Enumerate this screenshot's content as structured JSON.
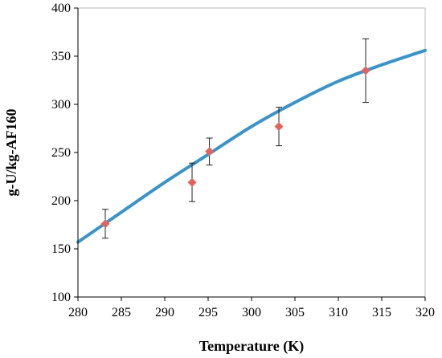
{
  "chart_data": {
    "type": "scatter",
    "title": "",
    "xlabel": "Temperature (K)",
    "ylabel": "g-U/kg-AF160",
    "xlim": [
      280,
      320
    ],
    "ylim": [
      100,
      400
    ],
    "x_ticks": [
      280,
      285,
      290,
      295,
      300,
      305,
      310,
      315,
      320
    ],
    "y_ticks": [
      100,
      150,
      200,
      250,
      300,
      350,
      400
    ],
    "grid": false,
    "legend": "none",
    "series": [
      {
        "kind": "points_with_error_bars",
        "color": "#e0645c",
        "marker": "diamond",
        "points": [
          {
            "x": 283.15,
            "y": 176,
            "err": 15
          },
          {
            "x": 293.15,
            "y": 219,
            "err": 20
          },
          {
            "x": 295.15,
            "y": 251,
            "err": 14
          },
          {
            "x": 303.15,
            "y": 277,
            "err": 20
          },
          {
            "x": 313.15,
            "y": 335,
            "err": 33
          }
        ]
      },
      {
        "kind": "fit_curve",
        "color": "#3b93c8",
        "points": [
          {
            "x": 280,
            "y": 157
          },
          {
            "x": 285,
            "y": 188
          },
          {
            "x": 290,
            "y": 219
          },
          {
            "x": 295,
            "y": 248
          },
          {
            "x": 300,
            "y": 277
          },
          {
            "x": 305,
            "y": 302
          },
          {
            "x": 310,
            "y": 324
          },
          {
            "x": 315,
            "y": 341
          },
          {
            "x": 320,
            "y": 356
          }
        ]
      }
    ]
  }
}
